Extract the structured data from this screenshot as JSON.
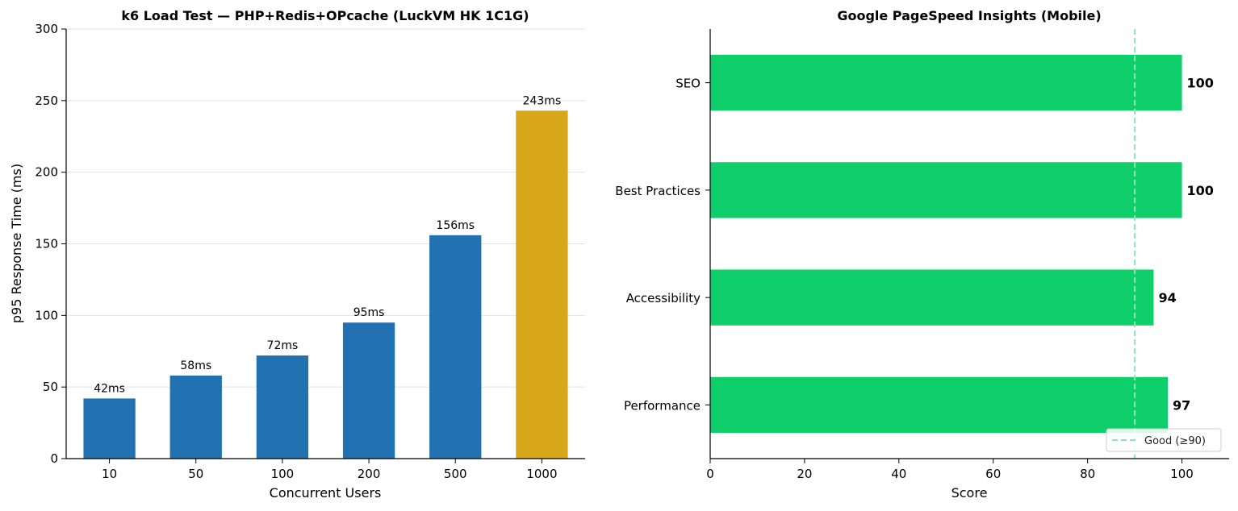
{
  "chart_data": [
    {
      "type": "bar",
      "title": "k6 Load Test — PHP+Redis+OPcache (LuckVM HK 1C1G)",
      "xlabel": "Concurrent Users",
      "ylabel": "p95 Response Time (ms)",
      "categories": [
        "10",
        "50",
        "100",
        "200",
        "500",
        "1000"
      ],
      "values": [
        42,
        58,
        72,
        95,
        156,
        243
      ],
      "data_labels": [
        "42ms",
        "58ms",
        "72ms",
        "95ms",
        "156ms",
        "243ms"
      ],
      "bar_colors": [
        "#2271b1",
        "#2271b1",
        "#2271b1",
        "#2271b1",
        "#2271b1",
        "#d9a71a"
      ],
      "ylim": [
        0,
        300
      ],
      "yticks": [
        0,
        50,
        100,
        150,
        200,
        250,
        300
      ],
      "grid": "horizontal"
    },
    {
      "type": "bar",
      "orientation": "horizontal",
      "title": "Google PageSpeed Insights (Mobile)",
      "xlabel": "Score",
      "ylabel": "",
      "categories": [
        "SEO",
        "Best Practices",
        "Accessibility",
        "Performance"
      ],
      "values": [
        100,
        100,
        94,
        97
      ],
      "data_labels": [
        "100",
        "100",
        "94",
        "97"
      ],
      "bar_color": "#0ecf6a",
      "xlim": [
        0,
        110
      ],
      "xticks": [
        0,
        20,
        40,
        60,
        80,
        100
      ],
      "threshold": {
        "value": 90,
        "label": "Good (≥90)",
        "color": "#8fe3b4"
      },
      "legend_position": "lower-right",
      "grid": "none"
    }
  ]
}
